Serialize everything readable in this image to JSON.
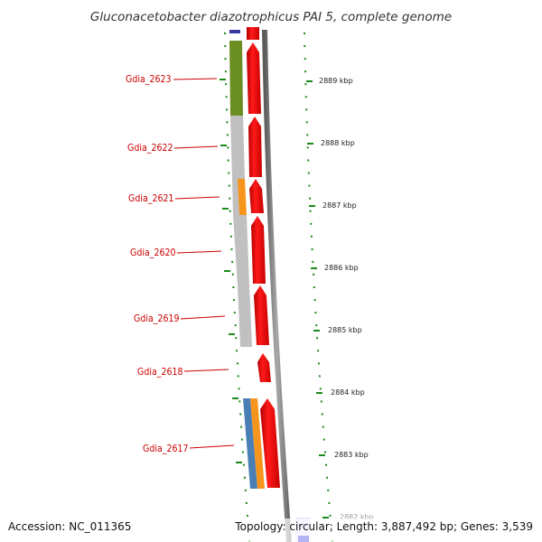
{
  "title": "Gluconacetobacter diazotrophicus PAI 5, complete genome",
  "footer": {
    "accession": "Accession: NC_011365",
    "topology": "Topology: circular; Length: 3,887,492 bp; Genes: 3,539"
  },
  "genes": [
    {
      "name": "Gdia_2623"
    },
    {
      "name": "Gdia_2622"
    },
    {
      "name": "Gdia_2621"
    },
    {
      "name": "Gdia_2620"
    },
    {
      "name": "Gdia_2619"
    },
    {
      "name": "Gdia_2618"
    },
    {
      "name": "Gdia_2617"
    }
  ],
  "scale": [
    {
      "label": "2889 kbp"
    },
    {
      "label": "2888 kbp"
    },
    {
      "label": "2887 kbp"
    },
    {
      "label": "2886 kbp"
    },
    {
      "label": "2885 kbp"
    },
    {
      "label": "2884 kbp"
    },
    {
      "label": "2883 kbp"
    },
    {
      "label": "2882 kbp"
    }
  ],
  "colors": {
    "cds": "#ff0000",
    "cog_green": "#6b8e23",
    "cog_grey": "#c0c0c0",
    "cog_orange": "#f7941d",
    "cog_blue": "#4a7fb5",
    "label_red": "#cc0000",
    "dots_green": "#1a8a1a",
    "backbone": "#8c8c8c"
  }
}
